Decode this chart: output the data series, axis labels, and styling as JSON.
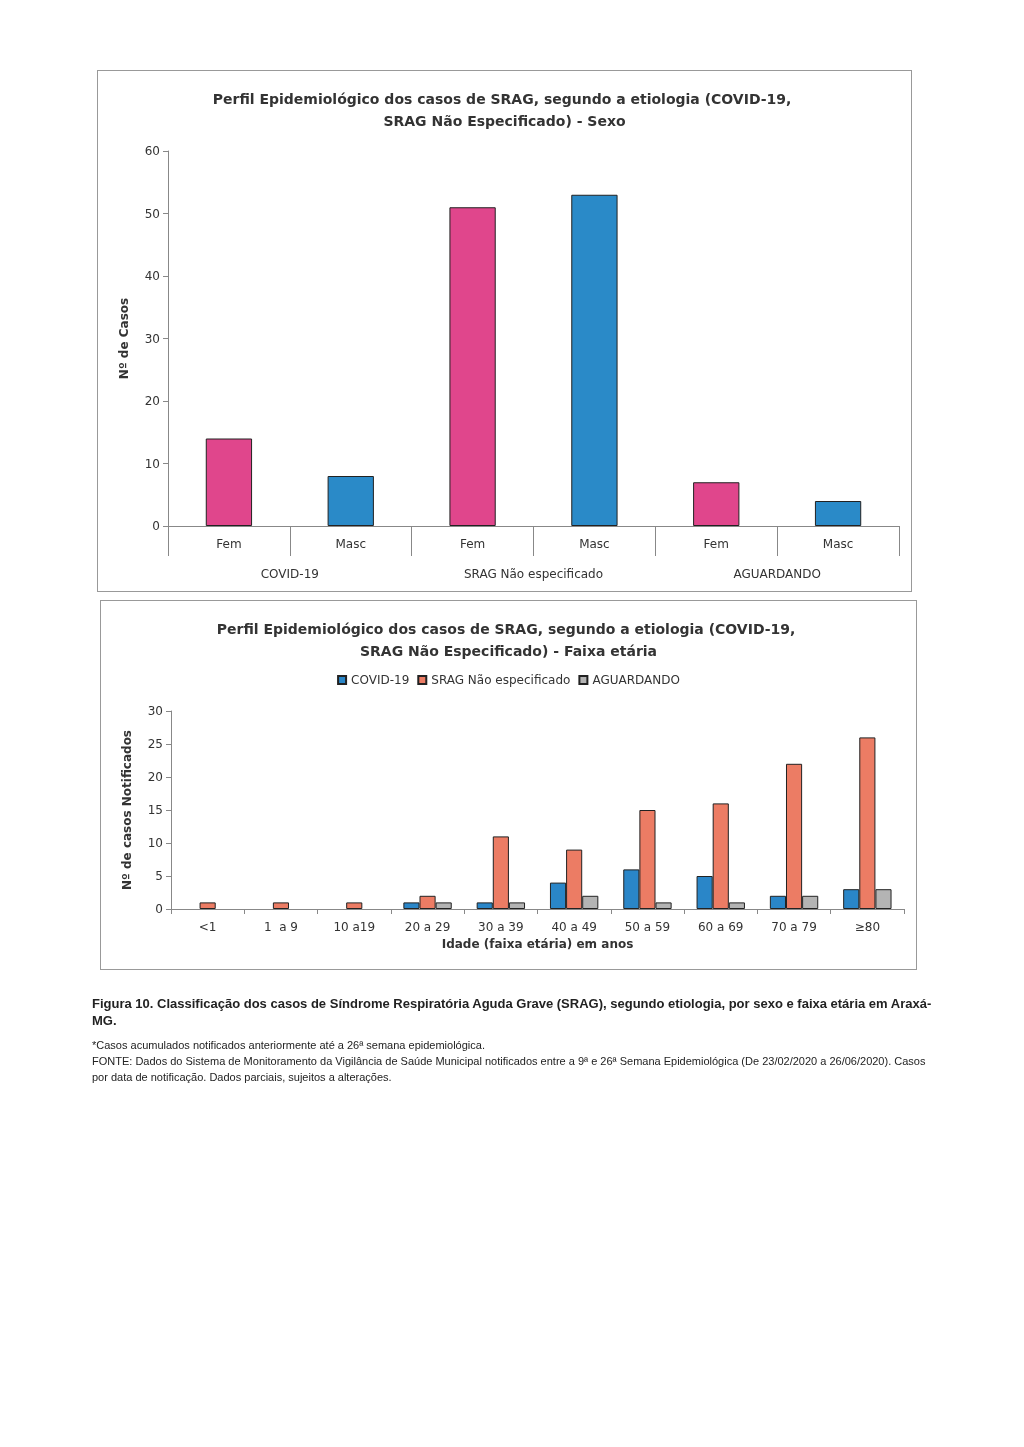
{
  "chart_data": [
    {
      "type": "bar",
      "title": "Perfil Epidemiológico dos casos de SRAG, segundo a etiologia (COVID-19, SRAG Não Especificado) - Sexo",
      "ylabel": "Nº de Casos",
      "categories": [
        "Fem",
        "Masc",
        "Fem",
        "Masc",
        "Fem",
        "Masc"
      ],
      "values": [
        14,
        8,
        51,
        53,
        7,
        4
      ],
      "colors": [
        "#e0468c",
        "#2a8ac8",
        "#e0468c",
        "#2a8ac8",
        "#e0468c",
        "#2a8ac8"
      ],
      "annotations": [
        "COVID-19",
        "SRAG Não especificado",
        "AGUARDANDO"
      ],
      "ylim": [
        0,
        60
      ],
      "yticks": [
        0,
        10,
        20,
        30,
        40,
        50,
        60
      ],
      "grid": false,
      "legend": false
    },
    {
      "type": "bar",
      "title": "Perfil Epidemiológico dos casos de SRAG, segundo a etiologia (COVID-19, SRAG Não Especificado) - Faixa etária",
      "xlabel": "Idade (faixa etária) em anos",
      "ylabel": "Nº de casos Notificados",
      "categories": [
        "<1",
        "1  a 9",
        "10 a19",
        "20 a 29",
        "30 a 39",
        "40 a 49",
        "50 a 59",
        "60 a 69",
        "70 a 79",
        "≥80"
      ],
      "series": [
        {
          "name": "COVID-19",
          "color": "#2a86c8",
          "values": [
            0,
            0,
            0,
            1,
            1,
            4,
            6,
            5,
            2,
            3
          ]
        },
        {
          "name": "SRAG Não especificado",
          "color": "#ec7c64",
          "values": [
            1,
            1,
            1,
            2,
            11,
            9,
            15,
            16,
            22,
            26
          ]
        },
        {
          "name": "AGUARDANDO",
          "color": "#b4b4b4",
          "values": [
            0,
            0,
            0,
            1,
            1,
            2,
            1,
            1,
            2,
            3
          ]
        }
      ],
      "annotations": [
        "Figura 10. Classificação dos casos de Síndrome Respiratória Aguda Grave (SRAG), segundo etiologia, por sexo e faixa etária em Araxá-MG.",
        "*Casos acumulados notificados anteriormente até a 26ª semana epidemiológica.",
        "FONTE: Dados do Sistema de Monitoramento da Vigilância de Saúde Municipal notificados entre a 9ª e 26ª Semana Epidemiológica (De 23/02/2020 a 26/06/2020). Casos por data de notificação. Dados parciais, sujeitos a alterações."
      ],
      "ylim": [
        0,
        30
      ],
      "yticks": [
        0,
        5,
        10,
        15,
        20,
        25,
        30
      ],
      "grid": false,
      "legend": "top"
    }
  ]
}
